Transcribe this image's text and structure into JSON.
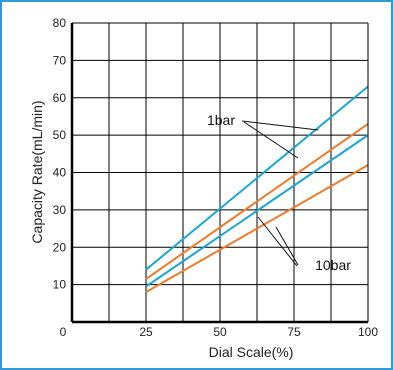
{
  "chart_data": {
    "type": "line",
    "xlabel": "Dial Scale(%)",
    "ylabel": "Capacity Rate(mL/min)",
    "xlim": [
      0,
      100
    ],
    "ylim": [
      0,
      80
    ],
    "x_ticks": [
      0,
      25,
      50,
      75,
      100
    ],
    "y_ticks": [
      10,
      20,
      30,
      40,
      50,
      60,
      70,
      80
    ],
    "grid": true,
    "series": [
      {
        "color": "#1aa6d6",
        "x": [
          25,
          100
        ],
        "y": [
          14,
          63
        ]
      },
      {
        "color": "#f07a2a",
        "x": [
          25,
          100
        ],
        "y": [
          11.5,
          53
        ]
      },
      {
        "color": "#1aa6d6",
        "x": [
          25,
          100
        ],
        "y": [
          9.5,
          50
        ]
      },
      {
        "color": "#f07a2a",
        "x": [
          25,
          100
        ],
        "y": [
          8,
          42
        ]
      }
    ],
    "annotations": [
      {
        "text": "1bar"
      },
      {
        "text": "10bar"
      }
    ]
  },
  "colors": {
    "frame": "#2f9ad6",
    "blue": "#1aa6d6",
    "orange": "#f07a2a"
  }
}
